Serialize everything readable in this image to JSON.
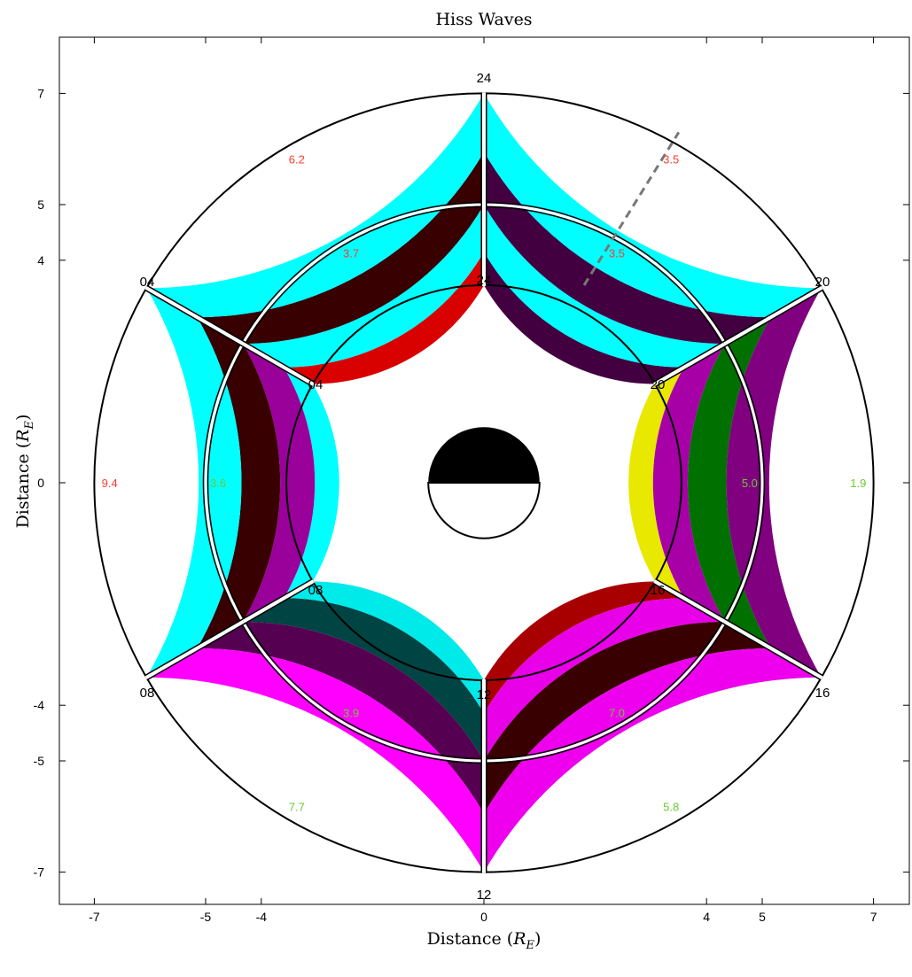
{
  "chart_data": {
    "type": "polar-wedge",
    "title": "Hiss Waves",
    "xlabel_prefix": "Distance (",
    "xlabel_symbol": "R",
    "xlabel_subscript": "E",
    "xlabel_suffix": ")",
    "ylabel_prefix": "Distance (",
    "ylabel_symbol": "R",
    "ylabel_subscript": "E",
    "ylabel_suffix": ")",
    "xlim": [
      -8,
      8
    ],
    "ylim": [
      -8,
      8
    ],
    "xticks": [
      -7,
      -5,
      -4,
      0,
      4,
      5,
      7
    ],
    "yticks": [
      7,
      5,
      4,
      0,
      -4,
      -5,
      -7
    ],
    "ring_boundaries": [
      4,
      5,
      7
    ],
    "sector_mlt_labels": [
      "24",
      "20",
      "16",
      "12",
      "08",
      "04"
    ],
    "inner_ring": {
      "sectors": [
        {
          "mlt": "24-20",
          "outer_color": "#00ffff",
          "inner_color": "#420041",
          "value": "3.5",
          "value_color": "#ff3b30"
        },
        {
          "mlt": "20-16",
          "outer_color": "#a600a6",
          "inner_color": "#e8e800",
          "value": "5.0",
          "value_color": "#66cc33"
        },
        {
          "mlt": "16-12",
          "outer_color": "#e800e8",
          "inner_color": "#a80000",
          "value": "7.0",
          "value_color": "#66cc33"
        },
        {
          "mlt": "12-08",
          "outer_color": "#004444",
          "inner_color": "#00eaea",
          "value": "3.9",
          "value_color": "#66cc33"
        },
        {
          "mlt": "08-04",
          "outer_color": "#9a009a",
          "inner_color": "#00ffff",
          "value": "3.6",
          "value_color": "#66cc33"
        },
        {
          "mlt": "04-24",
          "outer_color": "#00ffff",
          "inner_color": "#d90000",
          "value": "3.7",
          "value_color": "#ff3b30"
        }
      ]
    },
    "outer_ring": {
      "sectors": [
        {
          "mlt": "24-20",
          "outer_color": "#00ffff",
          "inner_color": "#420041",
          "value": "3.5",
          "value_color": "#ff3b30"
        },
        {
          "mlt": "20-16",
          "outer_color": "#800080",
          "inner_color": "#007000",
          "value": "1.9",
          "value_color": "#66cc33"
        },
        {
          "mlt": "16-12",
          "outer_color": "#ee00ee",
          "inner_color": "#380000",
          "value": "5.8",
          "value_color": "#66cc33"
        },
        {
          "mlt": "12-08",
          "outer_color": "#ff00ff",
          "inner_color": "#550050",
          "value": "7.7",
          "value_color": "#66cc33"
        },
        {
          "mlt": "08-04",
          "outer_color": "#00ffff",
          "inner_color": "#380000",
          "value": "9.4",
          "value_color": "#ff3b30"
        },
        {
          "mlt": "04-24",
          "outer_color": "#00ffff",
          "inner_color": "#380000",
          "value": "6.2",
          "value_color": "#ff3b30"
        }
      ]
    },
    "dashed_line": {
      "from": [
        1.8,
        3.55
      ],
      "to": [
        3.5,
        6.3
      ],
      "color": "#777777"
    },
    "earth": {
      "radius": 1,
      "day_color": "#ffffff",
      "night_color": "#000000"
    },
    "grid": false
  }
}
